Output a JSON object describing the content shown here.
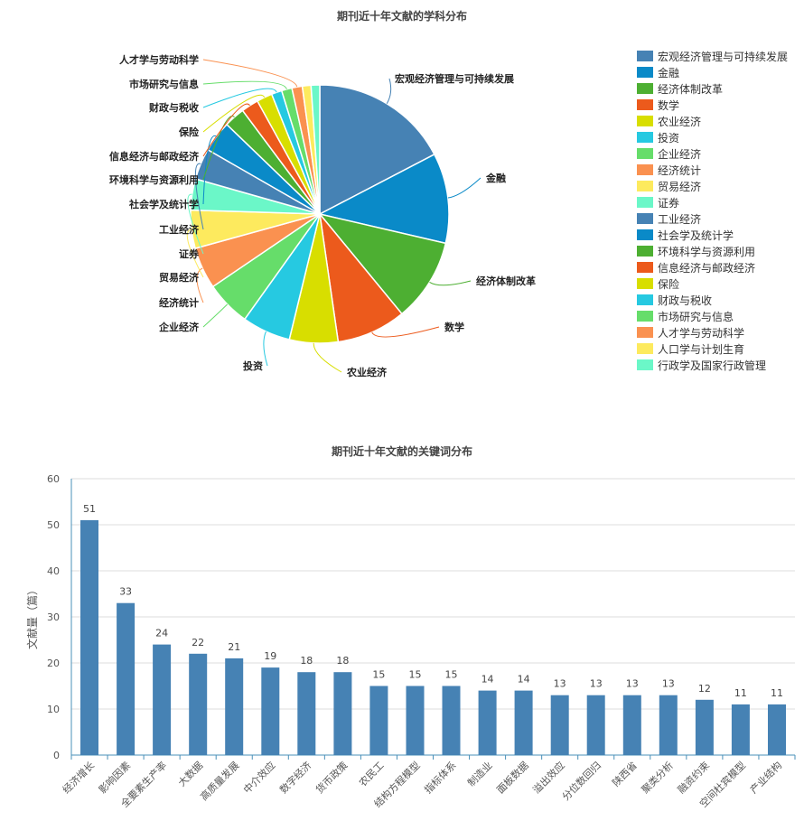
{
  "chart_data": [
    {
      "type": "pie",
      "title": "期刊近十年文献的学科分布",
      "legend_position": "right",
      "series": [
        {
          "name": "宏观经济管理与可持续发展",
          "value": 80,
          "color": "#4682B4"
        },
        {
          "name": "金融",
          "value": 52,
          "color": "#0A8AC8"
        },
        {
          "name": "经济体制改革",
          "value": 48,
          "color": "#4DAF32"
        },
        {
          "name": "数学",
          "value": 40,
          "color": "#EC5A1C"
        },
        {
          "name": "农业经济",
          "value": 28,
          "color": "#D8DE00"
        },
        {
          "name": "投资",
          "value": 28,
          "color": "#26C9E1"
        },
        {
          "name": "企业经济",
          "value": 26,
          "color": "#66DD6A"
        },
        {
          "name": "经济统计",
          "value": 24,
          "color": "#FA9150"
        },
        {
          "name": "贸易经济",
          "value": 22,
          "color": "#FDEA5E"
        },
        {
          "name": "证券",
          "value": 18,
          "color": "#6BF7C8"
        },
        {
          "name": "工业经济",
          "value": 18,
          "color": "#4682B4"
        },
        {
          "name": "社会学及统计学",
          "value": 18,
          "color": "#0A8AC8"
        },
        {
          "name": "环境科学与资源利用",
          "value": 12,
          "color": "#4DAF32"
        },
        {
          "name": "信息经济与邮政经济",
          "value": 10,
          "color": "#EC5A1C"
        },
        {
          "name": "保险",
          "value": 9,
          "color": "#D8DE00"
        },
        {
          "name": "财政与税收",
          "value": 6,
          "color": "#26C9E1"
        },
        {
          "name": "市场研究与信息",
          "value": 6,
          "color": "#66DD6A"
        },
        {
          "name": "人才学与劳动科学",
          "value": 6,
          "color": "#FA9150"
        },
        {
          "name": "人口学与计划生育",
          "value": 5,
          "color": "#FDEA5E"
        },
        {
          "name": "行政学及国家行政管理",
          "value": 5,
          "color": "#6BF7C8"
        }
      ],
      "slice_labels": [
        "宏观经济管理与可持续发展",
        "金融",
        "经济体制改革",
        "数学",
        "农业经济",
        "投资",
        "企业经济",
        "经济统计",
        "贸易经济",
        "证券",
        "工业经济",
        "社会学及统计学",
        "环境科学与资源利用",
        "信息经济与邮政经济",
        "保险",
        "财政与税收",
        "市场研究与信息",
        "人才学与劳动科学"
      ]
    },
    {
      "type": "bar",
      "title": "期刊近十年文献的关键词分布",
      "xlabel": "",
      "ylabel": "文献量（篇）",
      "ylim": [
        0,
        60
      ],
      "yticks": [
        0,
        10,
        20,
        30,
        40,
        50,
        60
      ],
      "grid": true,
      "bar_color": "#4682B4",
      "categories": [
        "经济增长",
        "影响因素",
        "全要素生产率",
        "大数据",
        "高质量发展",
        "中介效应",
        "数字经济",
        "货币政策",
        "农民工",
        "结构方程模型",
        "指标体系",
        "制造业",
        "面板数据",
        "溢出效应",
        "分位数回归",
        "陕西省",
        "聚类分析",
        "融资约束",
        "空间杜宾模型",
        "产业结构"
      ],
      "values": [
        51,
        33,
        24,
        22,
        21,
        19,
        18,
        18,
        15,
        15,
        15,
        14,
        14,
        13,
        13,
        13,
        13,
        12,
        11,
        11
      ]
    }
  ]
}
